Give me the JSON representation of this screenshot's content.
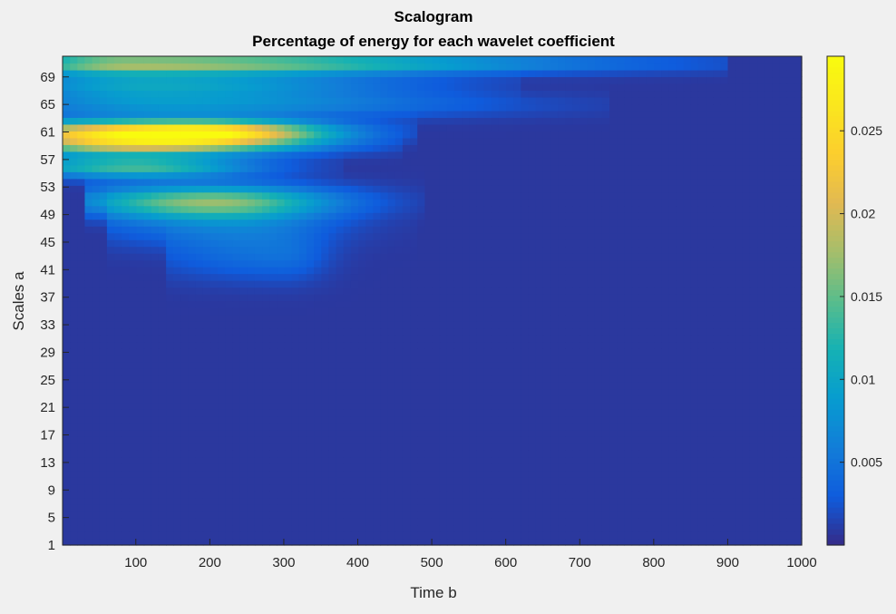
{
  "chart_data": {
    "type": "heatmap",
    "title": "Scalogram",
    "subtitle": "Percentage of energy for each wavelet coefficient",
    "xlabel": "Time b",
    "ylabel": "Scales a",
    "xlim": [
      1,
      1000
    ],
    "ylim": [
      1,
      72
    ],
    "xticks": [
      100,
      200,
      300,
      400,
      500,
      600,
      700,
      800,
      900,
      1000
    ],
    "yticks": [
      1,
      5,
      9,
      13,
      17,
      21,
      25,
      29,
      33,
      37,
      41,
      45,
      49,
      53,
      57,
      61,
      65,
      69
    ],
    "colorbar": {
      "colormap": "parula",
      "range": [
        0,
        0.0295
      ],
      "ticks": [
        0.005,
        0.01,
        0.015,
        0.02,
        0.025
      ],
      "tick_labels": [
        "0.005",
        "0.01",
        "0.015",
        "0.02",
        "0.025"
      ]
    },
    "background_value": 0.0008,
    "energy_regions": [
      {
        "scale": 61,
        "peak_time": 175,
        "time_extent": [
          1,
          420
        ],
        "scale_width": 1.2,
        "peak_value": 0.0295
      },
      {
        "scale": 71,
        "peak_time": 90,
        "time_extent": [
          1,
          840
        ],
        "scale_width": 1.0,
        "peak_value": 0.017
      },
      {
        "scale": 68,
        "peak_time": 120,
        "time_extent": [
          1,
          560
        ],
        "scale_width": 1.4,
        "peak_value": 0.009
      },
      {
        "scale": 65,
        "peak_time": 150,
        "time_extent": [
          1,
          680
        ],
        "scale_width": 1.3,
        "peak_value": 0.007
      },
      {
        "scale": 59,
        "peak_time": 100,
        "time_extent": [
          1,
          400
        ],
        "scale_width": 1.0,
        "peak_value": 0.015
      },
      {
        "scale": 56,
        "peak_time": 100,
        "time_extent": [
          1,
          320
        ],
        "scale_width": 1.1,
        "peak_value": 0.013
      },
      {
        "scale": 51,
        "peak_time": 200,
        "time_extent": [
          90,
          430
        ],
        "scale_width": 1.6,
        "peak_value": 0.014
      },
      {
        "scale": 48,
        "peak_time": 230,
        "time_extent": [
          120,
          420
        ],
        "scale_width": 2.5,
        "peak_value": 0.005
      },
      {
        "scale": 43,
        "peak_time": 300,
        "time_extent": [
          200,
          380
        ],
        "scale_width": 2.5,
        "peak_value": 0.0035
      }
    ]
  }
}
